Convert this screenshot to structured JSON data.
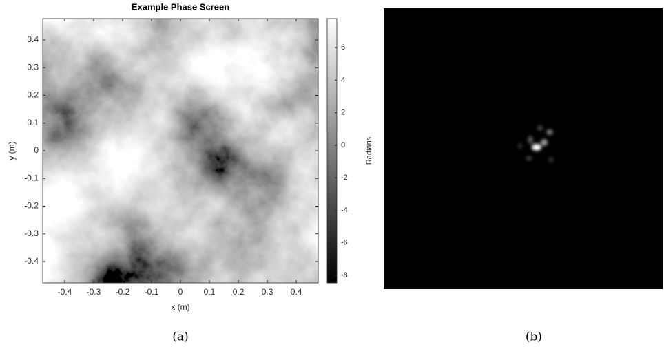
{
  "chart_data": [
    {
      "type": "heatmap",
      "title": "Example Phase Screen",
      "xlabel": "x (m)",
      "ylabel": "y (m)",
      "colorbar_label": "Radians",
      "colormap": "gray",
      "xlim": [
        -0.476,
        0.476
      ],
      "ylim": [
        -0.477,
        0.477
      ],
      "xticks": [
        -0.4,
        -0.3,
        -0.2,
        -0.1,
        0,
        0.1,
        0.2,
        0.3,
        0.4
      ],
      "yticks": [
        -0.4,
        -0.3,
        -0.2,
        -0.1,
        0,
        0.1,
        0.2,
        0.3,
        0.4
      ],
      "clim": [
        -8.46,
        7.78
      ],
      "cticks": [
        -8,
        -6,
        -4,
        -2,
        0,
        2,
        4,
        6
      ],
      "caption": "(a)"
    },
    {
      "type": "image",
      "caption": "(b)"
    }
  ]
}
